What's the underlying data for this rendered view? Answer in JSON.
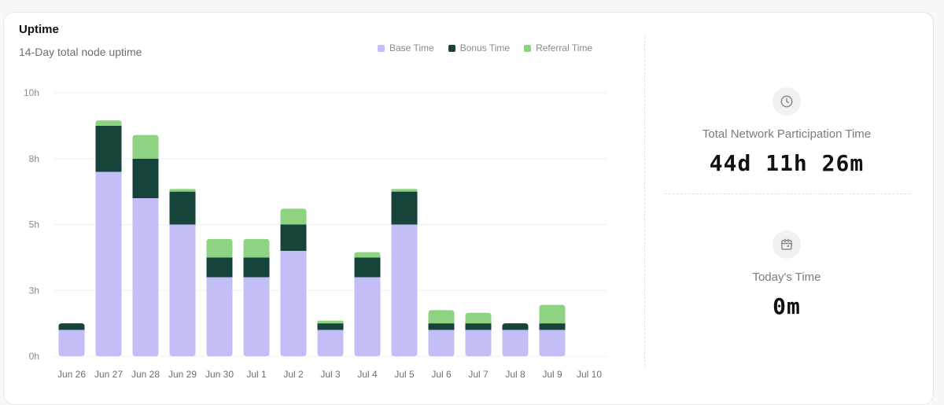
{
  "card": {
    "title": "Uptime",
    "subtitle": "14-Day total node uptime"
  },
  "legend": [
    {
      "label": "Base Time",
      "color": "#c4bef6"
    },
    {
      "label": "Bonus Time",
      "color": "#17443a"
    },
    {
      "label": "Referral Time",
      "color": "#8ed382"
    }
  ],
  "chart_data": {
    "type": "bar",
    "stacked": true,
    "categories": [
      "Jun 26",
      "Jun 27",
      "Jun 28",
      "Jun 29",
      "Jun 30",
      "Jul 1",
      "Jul 2",
      "Jul 3",
      "Jul 4",
      "Jul 5",
      "Jul 6",
      "Jul 7",
      "Jul 8",
      "Jul 9",
      "Jul 10"
    ],
    "series": [
      {
        "name": "Base Time",
        "color": "#c4bef6",
        "values": [
          1.0,
          7.0,
          6.0,
          5.0,
          3.0,
          3.0,
          4.0,
          1.0,
          3.0,
          5.0,
          1.0,
          1.0,
          1.0,
          1.0,
          0
        ]
      },
      {
        "name": "Bonus Time",
        "color": "#17443a",
        "values": [
          0.25,
          1.75,
          1.5,
          1.25,
          0.75,
          0.75,
          1.0,
          0.25,
          0.75,
          1.25,
          0.25,
          0.25,
          0.25,
          0.25,
          0
        ]
      },
      {
        "name": "Referral Time",
        "color": "#8ed382",
        "values": [
          0,
          0.2,
          0.9,
          0.1,
          0.7,
          0.7,
          0.6,
          0.1,
          0.2,
          0.1,
          0.5,
          0.4,
          0,
          0.7,
          0
        ]
      }
    ],
    "y_ticks": [
      {
        "value": 0,
        "label": "0h"
      },
      {
        "value": 2.5,
        "label": "3h"
      },
      {
        "value": 5,
        "label": "5h"
      },
      {
        "value": 7.5,
        "label": "8h"
      },
      {
        "value": 10,
        "label": "10h"
      }
    ],
    "ylim": [
      0,
      10
    ],
    "grid": true,
    "legend_position": "top-right"
  },
  "stats": [
    {
      "label": "Total Network Participation Time",
      "value": "44d 11h 26m",
      "icon": "clock-icon"
    },
    {
      "label": "Today's Time",
      "value": "0m",
      "icon": "calendar-icon"
    }
  ]
}
